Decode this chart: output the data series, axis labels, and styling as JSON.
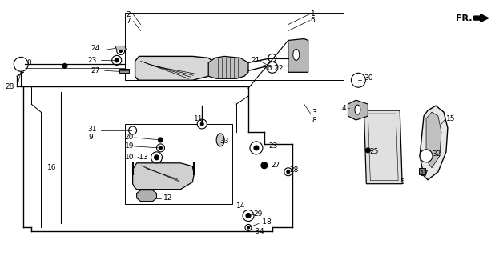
{
  "bg_color": "#ffffff",
  "fig_width": 6.18,
  "fig_height": 3.2,
  "dpi": 100
}
